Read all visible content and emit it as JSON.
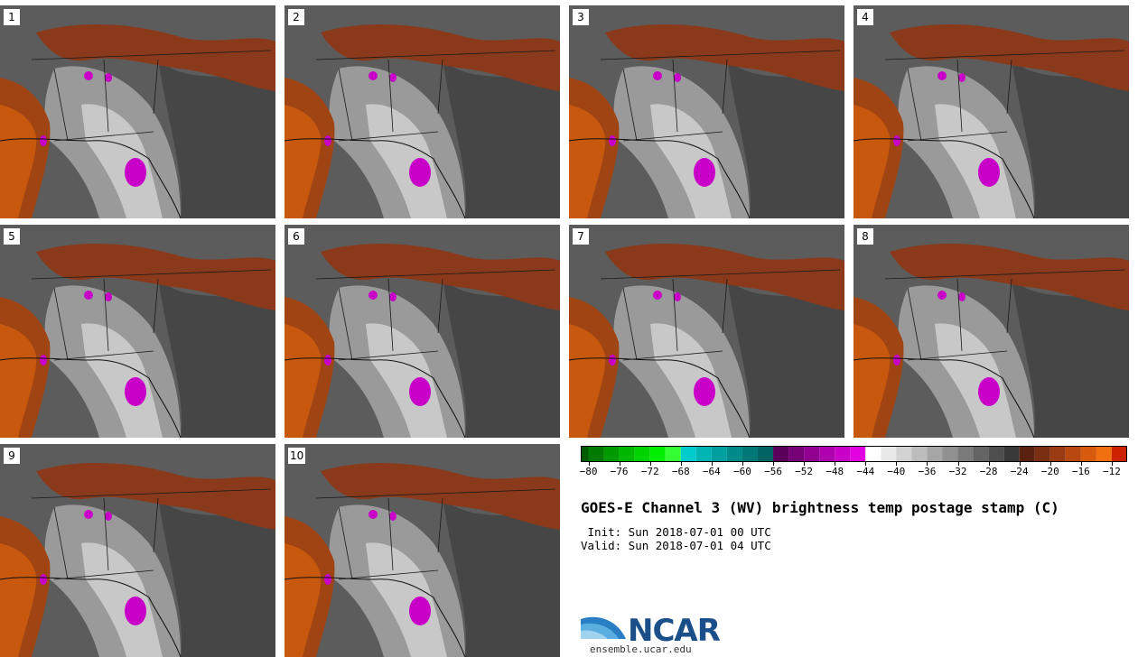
{
  "panels": [
    {
      "label": "1"
    },
    {
      "label": "2"
    },
    {
      "label": "3"
    },
    {
      "label": "4"
    },
    {
      "label": "5"
    },
    {
      "label": "6"
    },
    {
      "label": "7"
    },
    {
      "label": "8"
    },
    {
      "label": "9"
    },
    {
      "label": "10"
    }
  ],
  "colorbar": {
    "ticks": [
      "−80",
      "−76",
      "−72",
      "−68",
      "−64",
      "−60",
      "−56",
      "−52",
      "−48",
      "−44",
      "−40",
      "−36",
      "−32",
      "−28",
      "−24",
      "−20",
      "−16",
      "−12"
    ],
    "min": -81,
    "max": -10,
    "step": 2,
    "bands": [
      {
        "from": -82,
        "to": -68,
        "colors": [
          "#005a00",
          "#007a00",
          "#009a00",
          "#00b800",
          "#00d400",
          "#00ee00",
          "#33ff33"
        ]
      },
      {
        "from": -68,
        "to": -56,
        "colors": [
          "#00cccc",
          "#00b4b4",
          "#00a0a0",
          "#008a8a",
          "#007878",
          "#006464"
        ]
      },
      {
        "from": -56,
        "to": -44,
        "colors": [
          "#5a005a",
          "#760076",
          "#920092",
          "#ae00ae",
          "#c800c8",
          "#e000e0"
        ]
      },
      {
        "from": -44,
        "to": -24,
        "colors": [
          "#ffffff",
          "#e8e8e8",
          "#d2d2d2",
          "#bcbcbc",
          "#a6a6a6",
          "#909090",
          "#7a7a7a",
          "#646464",
          "#4e4e4e",
          "#383838"
        ]
      },
      {
        "from": -24,
        "to": -10,
        "colors": [
          "#5a2010",
          "#7a2e12",
          "#9a3a12",
          "#b84810",
          "#d85a0c",
          "#f07010",
          "#cc2200"
        ]
      }
    ]
  },
  "title": "GOES-E Channel 3 (WV) brightness temp postage stamp (C)",
  "init": " Init: Sun 2018-07-01 00 UTC",
  "valid": "Valid: Sun 2018-07-01 04 UTC",
  "logo": {
    "text": "NCAR",
    "url": "ensemble.ucar.edu"
  }
}
